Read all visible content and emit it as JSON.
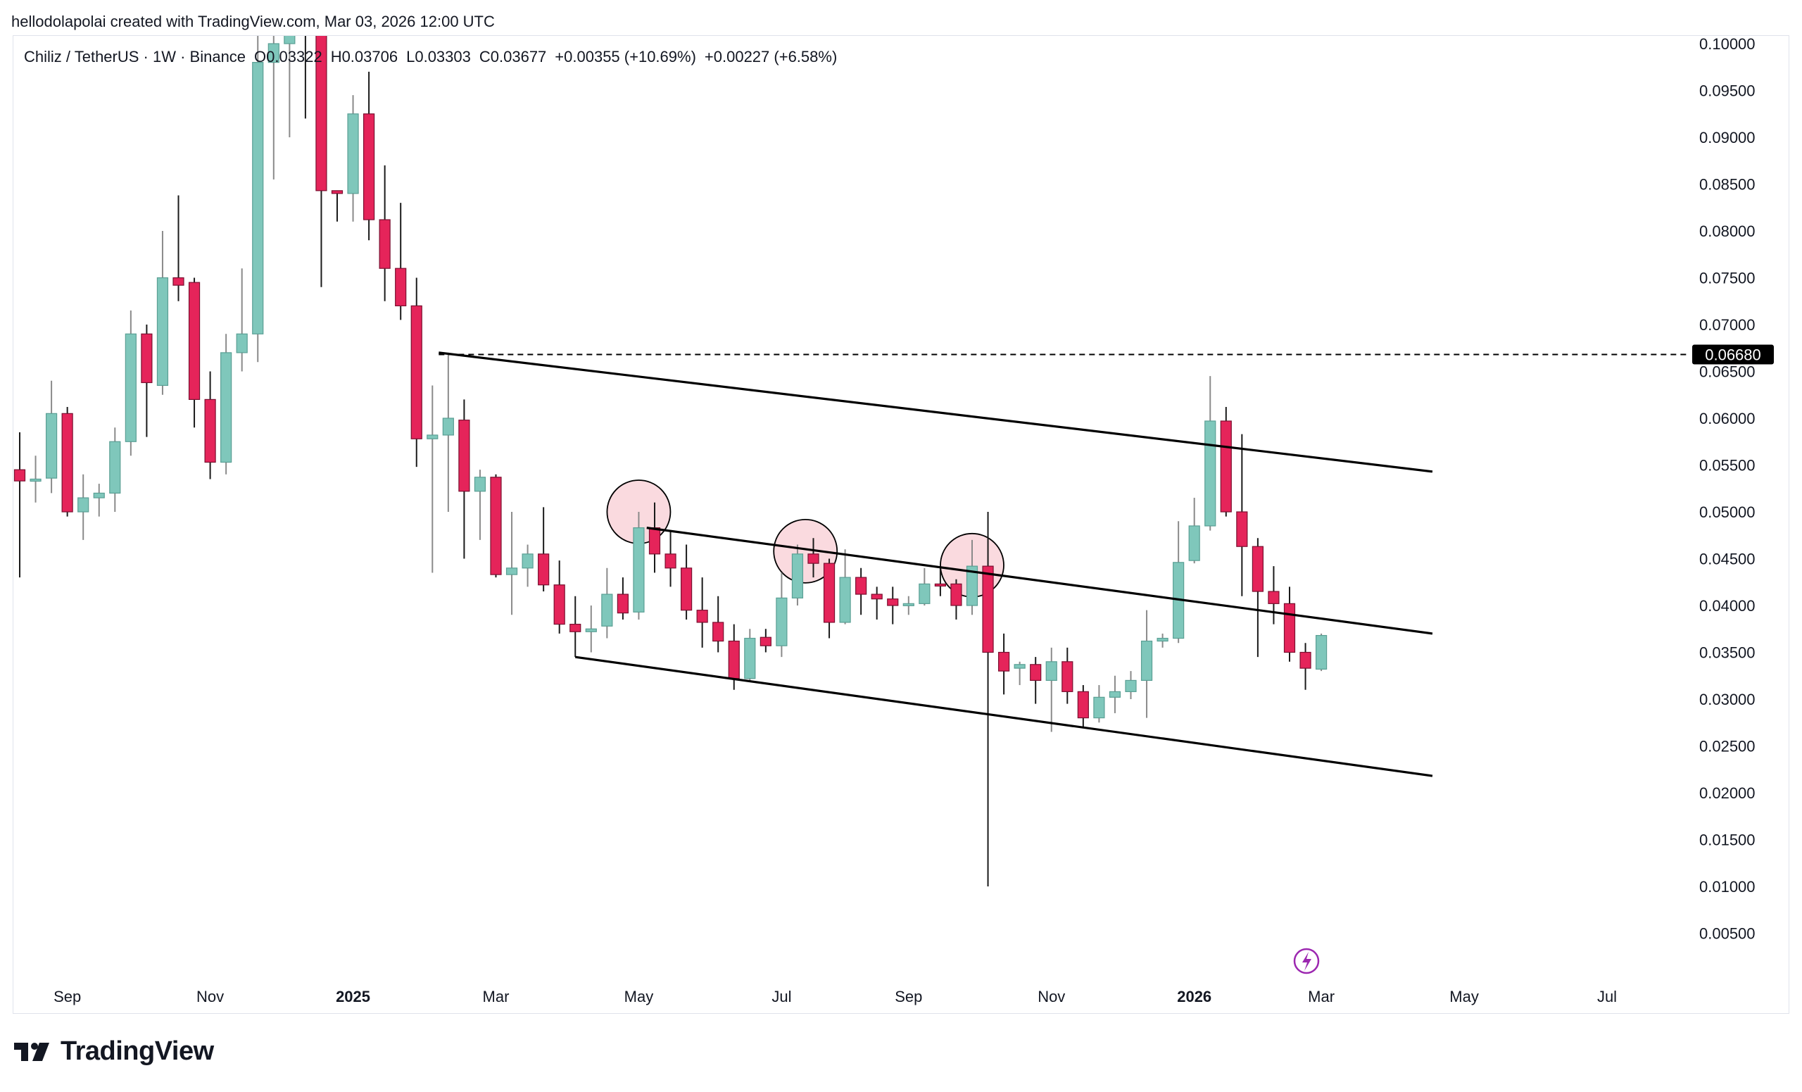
{
  "header": {
    "author_line": "hellodolapolai created with TradingView.com, Mar 03, 2026 12:00 UTC"
  },
  "legend": {
    "symbol": "Chiliz / TetherUS · 1W · Binance",
    "open": "O0.03322",
    "high": "H0.03706",
    "low": "L0.03303",
    "close": "C0.03677",
    "change": "+0.00355 (+10.69%)",
    "change2": "+0.00227 (+6.58%)"
  },
  "price_tag": "0.06680",
  "brand": {
    "name": "TradingView"
  },
  "colors": {
    "up": "#7fc7bb",
    "down": "#e5245a",
    "line": "#000000",
    "circle": "#f9d3d9",
    "tag_bg": "#000000"
  },
  "chart_data": {
    "type": "candlestick",
    "yticks": [
      "0.10000",
      "0.09500",
      "0.09000",
      "0.08500",
      "0.08000",
      "0.07500",
      "0.07000",
      "0.06500",
      "0.06000",
      "0.05500",
      "0.05000",
      "0.04500",
      "0.04000",
      "0.03500",
      "0.03000",
      "0.02500",
      "0.02000",
      "0.01500",
      "0.01000",
      "0.00500"
    ],
    "ylim": [
      0.0,
      0.1
    ],
    "xticks": [
      {
        "label": "Sep",
        "week": 3
      },
      {
        "label": "Nov",
        "week": 12
      },
      {
        "label": "2025",
        "week": 21,
        "bold": true
      },
      {
        "label": "Mar",
        "week": 30
      },
      {
        "label": "May",
        "week": 39
      },
      {
        "label": "Jul",
        "week": 48
      },
      {
        "label": "Sep",
        "week": 56
      },
      {
        "label": "Nov",
        "week": 65
      },
      {
        "label": "2026",
        "week": 74,
        "bold": true
      },
      {
        "label": "Mar",
        "week": 82
      },
      {
        "label": "May",
        "week": 91
      },
      {
        "label": "Jul",
        "week": 100
      }
    ],
    "candles": [
      [
        0.0545,
        0.0585,
        0.043,
        0.0533
      ],
      [
        0.0533,
        0.056,
        0.051,
        0.0535
      ],
      [
        0.0536,
        0.064,
        0.052,
        0.0605
      ],
      [
        0.0605,
        0.0612,
        0.0495,
        0.05
      ],
      [
        0.05,
        0.054,
        0.047,
        0.0515
      ],
      [
        0.0515,
        0.053,
        0.0495,
        0.052
      ],
      [
        0.052,
        0.059,
        0.05,
        0.0575
      ],
      [
        0.0575,
        0.0715,
        0.056,
        0.069
      ],
      [
        0.069,
        0.07,
        0.058,
        0.0638
      ],
      [
        0.0635,
        0.08,
        0.0625,
        0.075
      ],
      [
        0.075,
        0.0838,
        0.0725,
        0.0742
      ],
      [
        0.0745,
        0.075,
        0.059,
        0.062
      ],
      [
        0.062,
        0.065,
        0.0535,
        0.0553
      ],
      [
        0.0553,
        0.069,
        0.054,
        0.067
      ],
      [
        0.067,
        0.076,
        0.065,
        0.069
      ],
      [
        0.069,
        0.107,
        0.066,
        0.098
      ],
      [
        0.098,
        0.105,
        0.0855,
        0.1
      ],
      [
        0.1,
        0.115,
        0.09,
        0.105
      ],
      [
        0.105,
        0.108,
        0.092,
        0.103
      ],
      [
        0.101,
        0.102,
        0.074,
        0.0843
      ],
      [
        0.0843,
        0.084,
        0.081,
        0.084
      ],
      [
        0.084,
        0.0945,
        0.081,
        0.0925
      ],
      [
        0.0925,
        0.097,
        0.079,
        0.0812
      ],
      [
        0.0812,
        0.087,
        0.0725,
        0.076
      ],
      [
        0.076,
        0.083,
        0.0705,
        0.072
      ],
      [
        0.072,
        0.075,
        0.0548,
        0.0578
      ],
      [
        0.0578,
        0.0635,
        0.0435,
        0.0582
      ],
      [
        0.0582,
        0.067,
        0.05,
        0.06
      ],
      [
        0.0598,
        0.062,
        0.045,
        0.0522
      ],
      [
        0.0522,
        0.0545,
        0.047,
        0.0537
      ],
      [
        0.0537,
        0.054,
        0.043,
        0.0433
      ],
      [
        0.0433,
        0.05,
        0.039,
        0.044
      ],
      [
        0.044,
        0.0465,
        0.042,
        0.0455
      ],
      [
        0.0455,
        0.0505,
        0.0415,
        0.0422
      ],
      [
        0.0422,
        0.0448,
        0.037,
        0.038
      ],
      [
        0.038,
        0.041,
        0.0345,
        0.0372
      ],
      [
        0.0372,
        0.04,
        0.035,
        0.0375
      ],
      [
        0.0378,
        0.044,
        0.0365,
        0.0412
      ],
      [
        0.0412,
        0.043,
        0.0385,
        0.0392
      ],
      [
        0.0393,
        0.05,
        0.0385,
        0.0483
      ],
      [
        0.0483,
        0.051,
        0.0435,
        0.0455
      ],
      [
        0.0455,
        0.048,
        0.042,
        0.044
      ],
      [
        0.044,
        0.0465,
        0.0385,
        0.0395
      ],
      [
        0.0395,
        0.043,
        0.0355,
        0.0382
      ],
      [
        0.0382,
        0.041,
        0.035,
        0.0362
      ],
      [
        0.0362,
        0.038,
        0.031,
        0.0322
      ],
      [
        0.0322,
        0.0375,
        0.032,
        0.0365
      ],
      [
        0.0366,
        0.0375,
        0.035,
        0.0357
      ],
      [
        0.0357,
        0.0435,
        0.0345,
        0.0408
      ],
      [
        0.0408,
        0.0465,
        0.04,
        0.0455
      ],
      [
        0.0455,
        0.0472,
        0.043,
        0.0445
      ],
      [
        0.0445,
        0.045,
        0.0365,
        0.0382
      ],
      [
        0.0382,
        0.046,
        0.038,
        0.043
      ],
      [
        0.043,
        0.044,
        0.039,
        0.0412
      ],
      [
        0.0412,
        0.042,
        0.0385,
        0.0407
      ],
      [
        0.0407,
        0.042,
        0.038,
        0.04
      ],
      [
        0.04,
        0.041,
        0.039,
        0.0402
      ],
      [
        0.0402,
        0.044,
        0.04,
        0.0423
      ],
      [
        0.0423,
        0.044,
        0.041,
        0.0421
      ],
      [
        0.0423,
        0.0428,
        0.0385,
        0.04
      ],
      [
        0.04,
        0.047,
        0.039,
        0.0442
      ],
      [
        0.0442,
        0.05,
        0.01,
        0.035
      ],
      [
        0.035,
        0.037,
        0.0305,
        0.033
      ],
      [
        0.0333,
        0.034,
        0.0315,
        0.0337
      ],
      [
        0.0337,
        0.0345,
        0.0295,
        0.032
      ],
      [
        0.032,
        0.0355,
        0.0265,
        0.034
      ],
      [
        0.034,
        0.0355,
        0.0295,
        0.0308
      ],
      [
        0.0308,
        0.0315,
        0.027,
        0.028
      ],
      [
        0.028,
        0.0315,
        0.0275,
        0.0302
      ],
      [
        0.0302,
        0.0325,
        0.0285,
        0.0308
      ],
      [
        0.0308,
        0.033,
        0.03,
        0.032
      ],
      [
        0.032,
        0.0395,
        0.028,
        0.0362
      ],
      [
        0.0362,
        0.037,
        0.0355,
        0.0365
      ],
      [
        0.0365,
        0.049,
        0.036,
        0.0446
      ],
      [
        0.0448,
        0.0515,
        0.0445,
        0.0485
      ],
      [
        0.0485,
        0.0645,
        0.048,
        0.0597
      ],
      [
        0.0597,
        0.0612,
        0.0495,
        0.05
      ],
      [
        0.05,
        0.0583,
        0.041,
        0.0463
      ],
      [
        0.0463,
        0.0472,
        0.0345,
        0.0415
      ],
      [
        0.0415,
        0.0442,
        0.038,
        0.0402
      ],
      [
        0.0402,
        0.042,
        0.034,
        0.035
      ],
      [
        0.035,
        0.036,
        0.031,
        0.0333
      ],
      [
        0.0332,
        0.037,
        0.033,
        0.0368
      ]
    ],
    "trendlines": [
      {
        "p1": [
          26.4,
          0.067
        ],
        "p2": [
          89,
          0.0543
        ]
      },
      {
        "p1": [
          39.5,
          0.0483
        ],
        "p2": [
          89,
          0.037
        ]
      },
      {
        "p1": [
          35,
          0.0345
        ],
        "p2": [
          89,
          0.0218
        ]
      }
    ],
    "hline": {
      "value": 0.0668,
      "from_week": 26.4
    },
    "circles": [
      {
        "week": 39,
        "value": 0.05
      },
      {
        "week": 49.5,
        "value": 0.0458
      },
      {
        "week": 60,
        "value": 0.0443
      }
    ]
  }
}
